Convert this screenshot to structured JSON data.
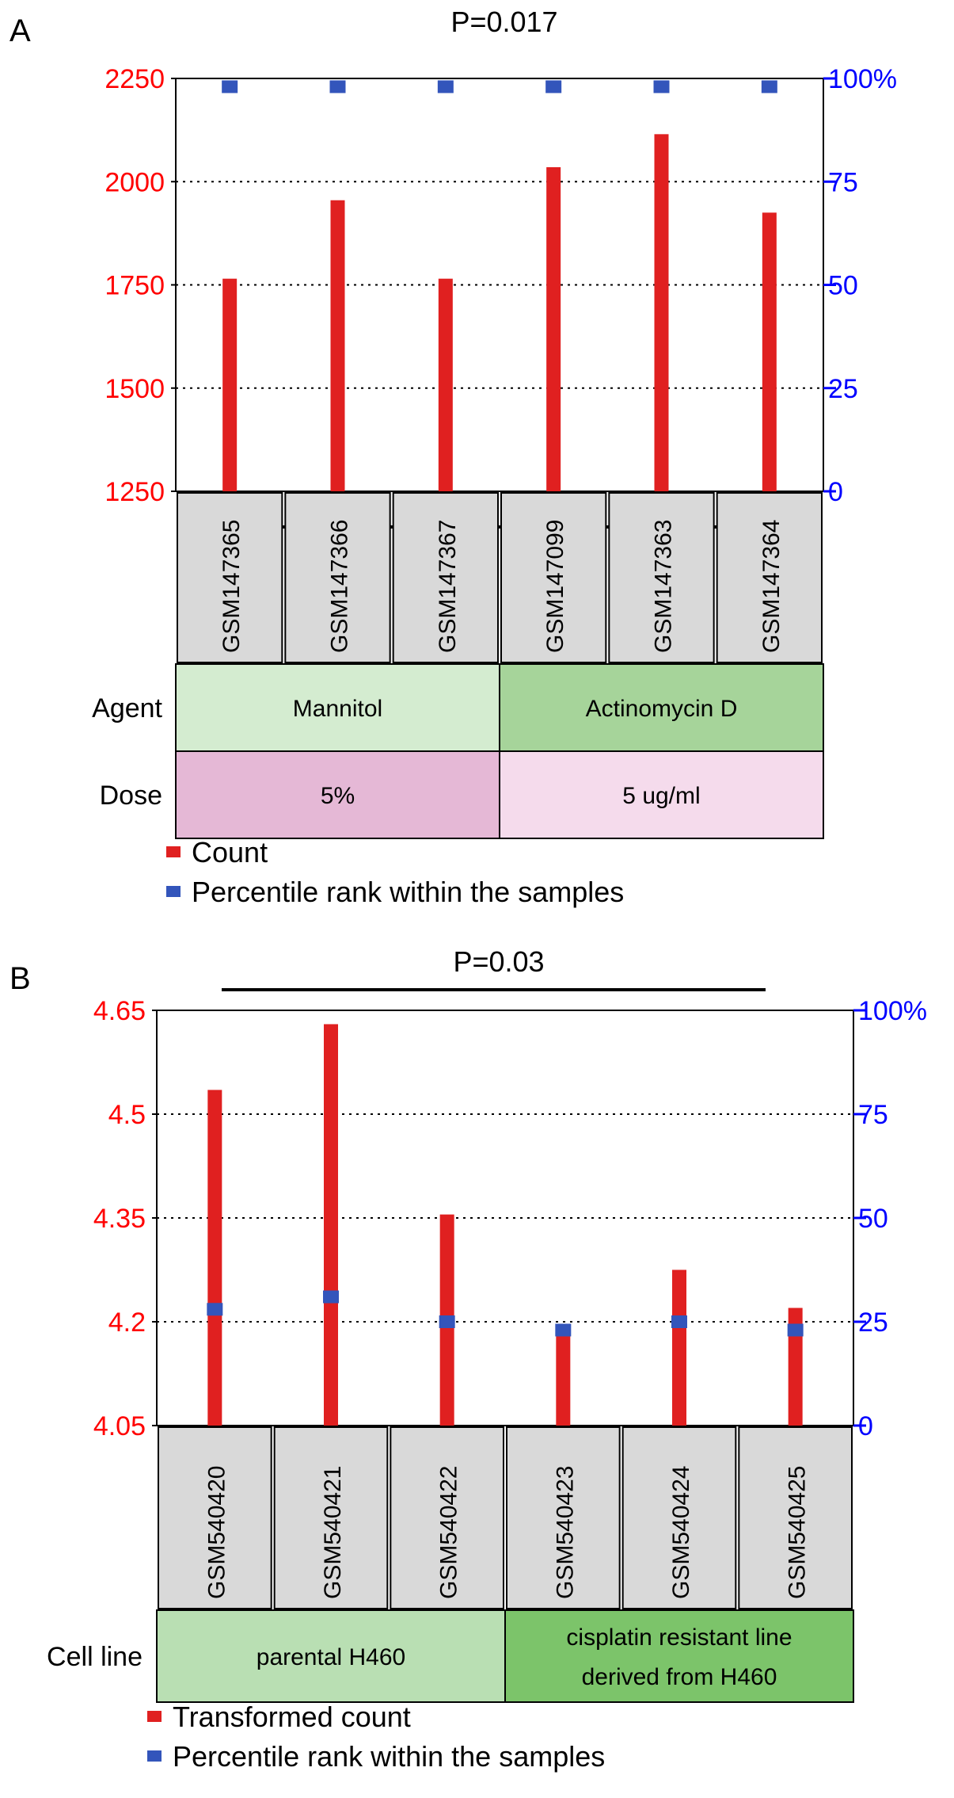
{
  "chart_data": [
    {
      "panel_label": "A",
      "type": "bar",
      "p_value": "P=0.017",
      "left_axis": {
        "ylim": [
          1250,
          2250
        ],
        "ticks": [
          "2250",
          "2000",
          "1750",
          "1500",
          "1250"
        ],
        "color": "#ff0000"
      },
      "right_axis": {
        "ylim": [
          0,
          100
        ],
        "ticks": [
          "100%",
          "75",
          "50",
          "25",
          "0"
        ],
        "color": "#0000ff"
      },
      "grid": true,
      "categories": [
        "GSM147365",
        "GSM147366",
        "GSM147367",
        "GSM147099",
        "GSM147363",
        "GSM147364"
      ],
      "series": [
        {
          "name": "Count",
          "axis": "left",
          "color": "#e02020",
          "values": [
            1765,
            1955,
            1765,
            2035,
            2115,
            1925
          ]
        },
        {
          "name": "Percentile rank within the samples",
          "axis": "right",
          "color": "#3355bb",
          "values": [
            98,
            98,
            98,
            98,
            98,
            98
          ]
        }
      ],
      "annotations": [
        {
          "label": "Agent",
          "groups": [
            {
              "text": "Mannitol",
              "span": 3,
              "color": "#d4ecd0"
            },
            {
              "text": "Actinomycin D",
              "span": 3,
              "color": "#a6d49a"
            }
          ]
        },
        {
          "label": "Dose",
          "groups": [
            {
              "text": "5%",
              "span": 3,
              "color": "#e5b8d6"
            },
            {
              "text": "5 ug/ml",
              "span": 3,
              "color": "#f5dbec"
            }
          ]
        }
      ],
      "legend": [
        "Count",
        "Percentile rank within the samples"
      ]
    },
    {
      "panel_label": "B",
      "type": "bar",
      "p_value": "P=0.03",
      "left_axis": {
        "ylim": [
          4.05,
          4.65
        ],
        "ticks": [
          "4.65",
          "4.5",
          "4.35",
          "4.2",
          "4.05"
        ],
        "color": "#ff0000"
      },
      "right_axis": {
        "ylim": [
          0,
          100
        ],
        "ticks": [
          "100%",
          "75",
          "50",
          "25",
          "0"
        ],
        "color": "#0000ff"
      },
      "grid": true,
      "categories": [
        "GSM540420",
        "GSM540421",
        "GSM540422",
        "GSM540423",
        "GSM540424",
        "GSM540425"
      ],
      "series": [
        {
          "name": "Transformed count",
          "axis": "left",
          "color": "#e02020",
          "values": [
            4.535,
            4.63,
            4.355,
            4.19,
            4.275,
            4.22
          ]
        },
        {
          "name": "Percentile rank within the samples",
          "axis": "right",
          "color": "#3355bb",
          "values": [
            28,
            31,
            25,
            23,
            25,
            23
          ]
        }
      ],
      "annotations": [
        {
          "label": "Cell line",
          "groups": [
            {
              "text": "parental H460",
              "span": 3,
              "color": "#b9dfb3"
            },
            {
              "text": "cisplatin resistant line\nderived from H460",
              "span": 3,
              "color": "#7cc46a"
            }
          ]
        }
      ],
      "legend": [
        "Transformed count",
        "Percentile rank within the samples"
      ]
    }
  ]
}
